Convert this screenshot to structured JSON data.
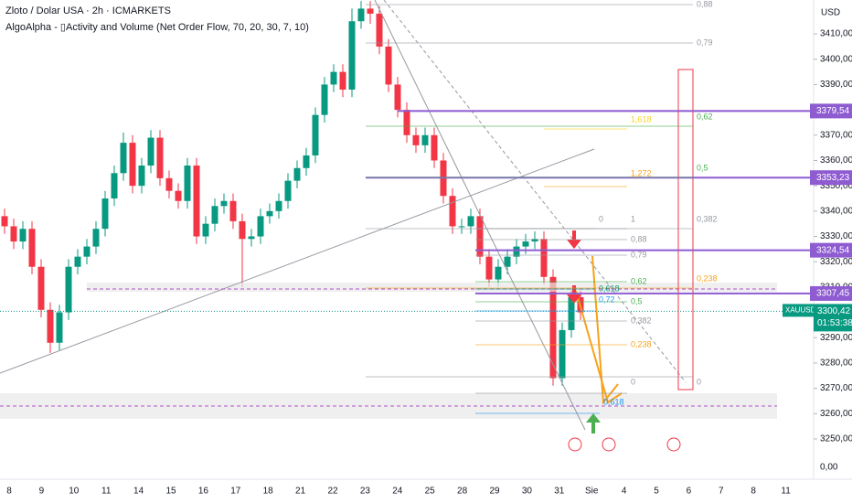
{
  "chart_data": {
    "type": "candlestick",
    "title": "Zloto / Dolar USA · 2h · ICMARKETS",
    "subtitle": "AlgoAlpha - ▯Activity and Volume (Net Order Flow, 70, 20, 30, 7, 10)",
    "currency": "USD",
    "up_color": "#089981",
    "down_color": "#f23645",
    "open": [
      3338,
      3334,
      3328,
      3333,
      3318,
      3301,
      3288,
      3300,
      3318,
      3322,
      3326,
      3333,
      3345,
      3355,
      3367,
      3350,
      3358,
      3369,
      3353,
      3348,
      3344,
      3358,
      3330,
      3335,
      3342,
      3344,
      3336,
      3329,
      3330,
      3338,
      3340,
      3344,
      3352,
      3357,
      3362,
      3378,
      3390,
      3395,
      3388,
      3415,
      3420,
      3418,
      3405,
      3390,
      3380,
      3370,
      3366,
      3370,
      3360,
      3346,
      3334,
      3334,
      3338,
      3322,
      3313,
      3318,
      3322,
      3326,
      3328,
      3329,
      3314,
      3274,
      3293,
      3306
    ],
    "high": [
      3341,
      3337,
      3336,
      3336,
      3321,
      3304,
      3303,
      3321,
      3325,
      3329,
      3336,
      3348,
      3358,
      3371,
      3370,
      3361,
      3372,
      3372,
      3356,
      3351,
      3361,
      3361,
      3338,
      3345,
      3347,
      3347,
      3339,
      3333,
      3341,
      3343,
      3347,
      3355,
      3360,
      3365,
      3381,
      3393,
      3398,
      3398,
      3420,
      3423,
      3423,
      3421,
      3408,
      3393,
      3383,
      3373,
      3373,
      3373,
      3363,
      3349,
      3337,
      3341,
      3341,
      3325,
      3321,
      3325,
      3329,
      3331,
      3332,
      3332,
      3317,
      3296,
      3309,
      3309
    ],
    "low": [
      3331,
      3325,
      3325,
      3315,
      3298,
      3284,
      3285,
      3297,
      3315,
      3319,
      3323,
      3330,
      3342,
      3352,
      3347,
      3347,
      3355,
      3350,
      3345,
      3341,
      3341,
      3327,
      3327,
      3332,
      3339,
      3333,
      3310,
      3326,
      3327,
      3335,
      3337,
      3341,
      3349,
      3354,
      3359,
      3375,
      3387,
      3385,
      3385,
      3412,
      3414,
      3402,
      3387,
      3377,
      3367,
      3363,
      3363,
      3357,
      3343,
      3331,
      3331,
      3331,
      3319,
      3310,
      3310,
      3315,
      3319,
      3323,
      3325,
      3311,
      3271,
      3271,
      3290,
      3297
    ],
    "close": [
      3334,
      3328,
      3333,
      3318,
      3301,
      3288,
      3300,
      3318,
      3322,
      3326,
      3333,
      3345,
      3355,
      3367,
      3350,
      3358,
      3369,
      3353,
      3348,
      3344,
      3358,
      3330,
      3335,
      3342,
      3344,
      3336,
      3329,
      3330,
      3338,
      3340,
      3344,
      3352,
      3357,
      3362,
      3378,
      3390,
      3395,
      3388,
      3415,
      3420,
      3418,
      3405,
      3390,
      3380,
      3370,
      3366,
      3370,
      3360,
      3346,
      3334,
      3334,
      3338,
      3322,
      3313,
      3318,
      3322,
      3326,
      3328,
      3329,
      3314,
      3274,
      3293,
      3306,
      3300
    ],
    "categories": [
      "8",
      "9",
      "10",
      "11",
      "14",
      "15",
      "16",
      "17",
      "18",
      "21",
      "22",
      "23",
      "24",
      "25",
      "28",
      "29",
      "30",
      "31",
      "Sie",
      "4",
      "5",
      "6",
      "7",
      "8",
      "11"
    ],
    "ylim": [
      3234.8,
      3423.4
    ],
    "yticks": [
      {
        "value": 3250,
        "label": "3250,00"
      },
      {
        "value": 3260,
        "label": "3260,00"
      },
      {
        "value": 3270,
        "label": "3270,00"
      },
      {
        "value": 3280,
        "label": "3280,00"
      },
      {
        "value": 3290,
        "label": "3290,00"
      },
      {
        "value": 3300,
        "label": "3300,00"
      },
      {
        "value": 3310,
        "label": "3310,00"
      },
      {
        "value": 3320,
        "label": "3320,00"
      },
      {
        "value": 3330,
        "label": "3330,00"
      },
      {
        "value": 3340,
        "label": "3340,00"
      },
      {
        "value": 3350,
        "label": "3350,00"
      },
      {
        "value": 3360,
        "label": "3360,00"
      },
      {
        "value": 3370,
        "label": "3370,00"
      },
      {
        "value": 3380,
        "label": "3380,00"
      },
      {
        "value": 3390,
        "label": "3390,00"
      },
      {
        "value": 3400,
        "label": "3400,00"
      },
      {
        "value": 3410,
        "label": "3410,00"
      }
    ],
    "lower_pane_label": "0,00",
    "levels": [
      {
        "value": 3379.54,
        "label": "3379,54"
      },
      {
        "value": 3353.23,
        "label": "3353,23"
      },
      {
        "value": 3324.54,
        "label": "3324,54"
      },
      {
        "value": 3307.45,
        "label": "3307,45"
      }
    ],
    "level_color": "#8e5bd1",
    "last_price": {
      "value": 3300.42,
      "label": "3300,42",
      "symbol": "XAUUSD",
      "countdown": "01:53:38"
    },
    "annotations": [
      "0,88",
      "0,79",
      "0,62",
      "0,5",
      "0,382",
      "0,238",
      "0",
      "1,618",
      "1,272",
      "0",
      "1",
      "0,88",
      "0,79",
      "0,62",
      "0,5",
      "0,382",
      "0,238",
      "0",
      "0,618",
      "0,72",
      "0,618"
    ]
  }
}
